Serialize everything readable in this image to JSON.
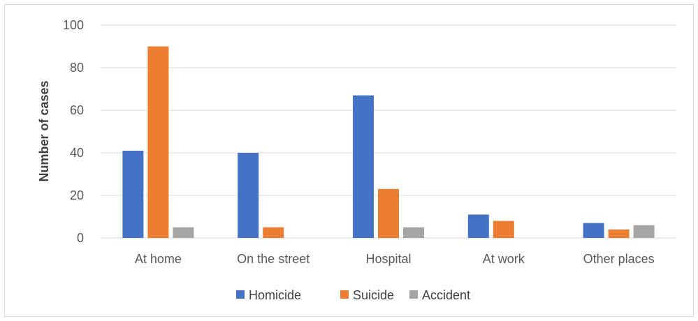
{
  "chart_data": {
    "type": "bar",
    "title": "",
    "xlabel": "",
    "ylabel": "Number of cases",
    "ylim": [
      0,
      100
    ],
    "yticks": [
      0,
      20,
      40,
      60,
      80,
      100
    ],
    "grid": true,
    "legend_position": "bottom",
    "categories": [
      "At home",
      "On the street",
      "Hospital",
      "At work",
      "Other places"
    ],
    "series": [
      {
        "name": "Homicide",
        "color": "#4472c4",
        "values": [
          41,
          40,
          67,
          11,
          7
        ]
      },
      {
        "name": "Suicide",
        "color": "#ed7d31",
        "values": [
          90,
          5,
          23,
          8,
          4
        ]
      },
      {
        "name": "Accident",
        "color": "#a5a5a5",
        "values": [
          5,
          0,
          5,
          0,
          6
        ]
      }
    ]
  }
}
